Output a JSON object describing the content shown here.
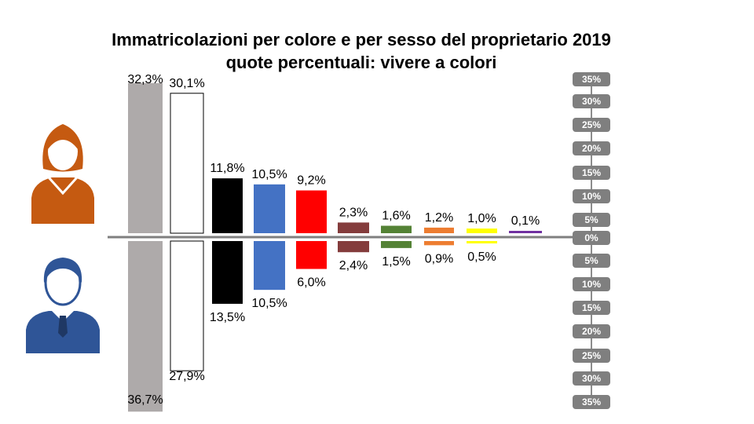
{
  "chart_data": {
    "type": "bar",
    "title": "Immatricolazioni per colore e per sesso del proprietario 2019",
    "subtitle": "quote percentuali: vivere a colori",
    "series": [
      {
        "values": [
          32.3,
          30.1,
          11.8,
          10.5,
          9.2,
          2.3,
          1.6,
          1.2,
          1.0,
          0.1
        ],
        "labels": [
          "32,3%",
          "30,1%",
          "11,8%",
          "10,5%",
          "9,2%",
          "2,3%",
          "1,6%",
          "1,2%",
          "1,0%",
          "0,1%"
        ]
      },
      {
        "values": [
          36.7,
          27.9,
          13.5,
          10.5,
          6.0,
          2.4,
          1.5,
          0.9,
          0.5,
          null
        ],
        "labels": [
          "36,7%",
          "27,9%",
          "13,5%",
          "10,5%",
          "6,0%",
          "2,4%",
          "1,5%",
          "0,9%",
          "0,5%",
          null
        ]
      }
    ],
    "colors": [
      "#aeaaaa",
      "#ffffff",
      "#000000",
      "#4472c4",
      "#ff0000",
      "#843c3c",
      "#548235",
      "#ed7d31",
      "#ffff00",
      "#7030a0"
    ],
    "ylim": [
      0,
      35
    ],
    "axis_ticks": [
      "35%",
      "30%",
      "25%",
      "20%",
      "15%",
      "10%",
      "5%",
      "0%",
      "5%",
      "10%",
      "15%",
      "20%",
      "25%",
      "30%",
      "35%"
    ],
    "icons": [
      "woman-icon",
      "man-icon"
    ]
  }
}
